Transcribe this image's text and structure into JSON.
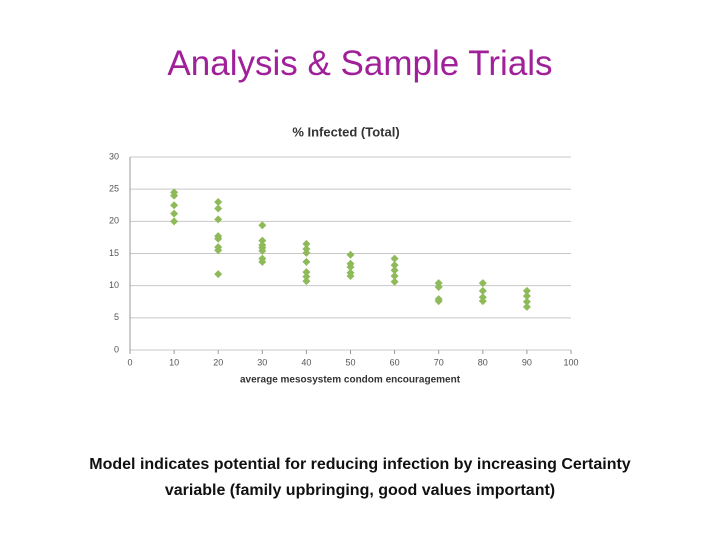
{
  "slide": {
    "title": "Analysis & Sample Trials",
    "caption": [
      "Model indicates potential for reducing infection by increasing Certainty",
      "variable (family upbringing, good values important)"
    ]
  },
  "chart_data": {
    "type": "scatter",
    "title": "% Infected (Total)",
    "x_label": "average mesosystem condom encouragement",
    "color": "#8fba5a",
    "grid": true,
    "xlim": [
      0,
      100
    ],
    "xticks": [
      0,
      10,
      20,
      30,
      40,
      50,
      60,
      70,
      80,
      90,
      100
    ],
    "ylim": [
      0,
      30
    ],
    "yticks": [
      0,
      5,
      10,
      15,
      20,
      25,
      30
    ],
    "x": [
      10,
      10,
      10,
      10,
      10,
      20,
      20,
      20,
      20,
      20,
      20,
      20,
      20,
      30,
      30,
      30,
      30,
      30,
      30,
      30,
      40,
      40,
      40,
      40,
      40,
      40,
      40,
      50,
      50,
      50,
      50,
      50,
      60,
      60,
      60,
      60,
      60,
      70,
      70,
      70,
      70,
      80,
      80,
      80,
      80,
      90,
      90,
      90,
      90
    ],
    "values": [
      24.5,
      24,
      22.5,
      21.2,
      20,
      23,
      22,
      20.3,
      17.7,
      17.3,
      16,
      15.5,
      11.8,
      19.4,
      17,
      16.3,
      15.9,
      15.4,
      14.2,
      13.7,
      16.5,
      15.7,
      15.1,
      13.7,
      12.1,
      11.4,
      10.7,
      14.8,
      13.4,
      12.9,
      12,
      11.5,
      14.2,
      13.2,
      12.4,
      11.5,
      10.6,
      10.4,
      9.8,
      7.9,
      7.6,
      10.4,
      9.2,
      8.2,
      7.6,
      9.2,
      8.4,
      7.5,
      6.7
    ]
  }
}
